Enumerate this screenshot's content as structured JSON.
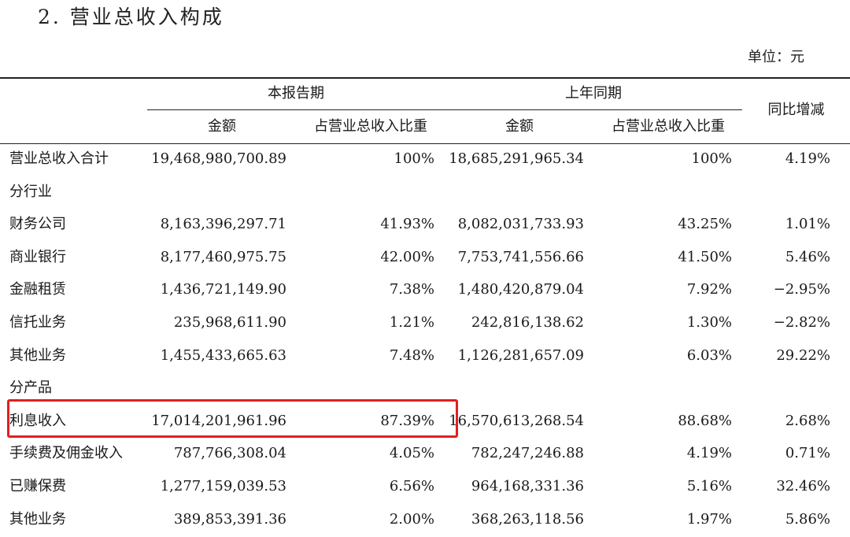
{
  "title": "2. 营业总收入构成",
  "unit": "单位：元",
  "header": {
    "current_period": "本报告期",
    "prior_period": "上年同期",
    "amount": "金额",
    "share": "占营业总收入比重",
    "yoy": "同比增减"
  },
  "rows": [
    {
      "label": "营业总收入合计",
      "cur_amount": "19,468,980,700.89",
      "cur_share": "100%",
      "prev_amount": "18,685,291,965.34",
      "prev_share": "100%",
      "yoy": "4.19%"
    },
    {
      "label": "分行业",
      "cur_amount": "",
      "cur_share": "",
      "prev_amount": "",
      "prev_share": "",
      "yoy": ""
    },
    {
      "label": "财务公司",
      "cur_amount": "8,163,396,297.71",
      "cur_share": "41.93%",
      "prev_amount": "8,082,031,733.93",
      "prev_share": "43.25%",
      "yoy": "1.01%"
    },
    {
      "label": "商业银行",
      "cur_amount": "8,177,460,975.75",
      "cur_share": "42.00%",
      "prev_amount": "7,753,741,556.66",
      "prev_share": "41.50%",
      "yoy": "5.46%"
    },
    {
      "label": "金融租赁",
      "cur_amount": "1,436,721,149.90",
      "cur_share": "7.38%",
      "prev_amount": "1,480,420,879.04",
      "prev_share": "7.92%",
      "yoy": "−2.95%"
    },
    {
      "label": "信托业务",
      "cur_amount": "235,968,611.90",
      "cur_share": "1.21%",
      "prev_amount": "242,816,138.62",
      "prev_share": "1.30%",
      "yoy": "−2.82%"
    },
    {
      "label": "其他业务",
      "cur_amount": "1,455,433,665.63",
      "cur_share": "7.48%",
      "prev_amount": "1,126,281,657.09",
      "prev_share": "6.03%",
      "yoy": "29.22%"
    },
    {
      "label": "分产品",
      "cur_amount": "",
      "cur_share": "",
      "prev_amount": "",
      "prev_share": "",
      "yoy": ""
    },
    {
      "label": "利息收入",
      "cur_amount": "17,014,201,961.96",
      "cur_share": "87.39%",
      "prev_amount": "16,570,613,268.54",
      "prev_share": "88.68%",
      "yoy": "2.68%"
    },
    {
      "label": "手续费及佣金收入",
      "cur_amount": "787,766,308.04",
      "cur_share": "4.05%",
      "prev_amount": "782,247,246.88",
      "prev_share": "4.19%",
      "yoy": "0.71%"
    },
    {
      "label": "已赚保费",
      "cur_amount": "1,277,159,039.53",
      "cur_share": "6.56%",
      "prev_amount": "964,168,331.36",
      "prev_share": "5.16%",
      "yoy": "32.46%"
    },
    {
      "label": "其他业务",
      "cur_amount": "389,853,391.36",
      "cur_share": "2.00%",
      "prev_amount": "368,263,118.56",
      "prev_share": "1.97%",
      "yoy": "5.86%"
    }
  ],
  "highlight_color": "#e02020"
}
